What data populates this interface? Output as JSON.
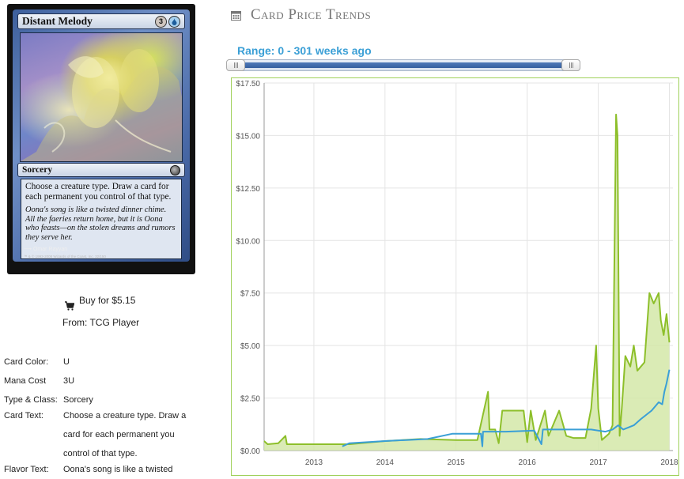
{
  "card": {
    "name": "Distant Melody",
    "mana_cost": [
      "3",
      "U"
    ],
    "type_line": "Sorcery",
    "rules_text": "Choose a creature type. Draw a card for each permanent you control of that type.",
    "flavor_text": "Oona's song is like a twisted dinner chime. All the faeries return home, but it is Oona who feasts—on the stolen dreams and rumors they serve her.",
    "artist": "Omar Rayyan",
    "legal": "™ & © 1993-2008 Wizards of the Coast, Inc. 32/150",
    "colors": {
      "frame": "#4a6aa8",
      "text_box": "#dfe6f1"
    }
  },
  "buy": {
    "label": "Buy for $5.15",
    "from": "From: TCG Player",
    "icon": "shopping-cart-icon"
  },
  "details": [
    {
      "label": "Card Color:",
      "value": "U"
    },
    {
      "label": "Mana Cost",
      "value": "3U"
    },
    {
      "label": "Type & Class:",
      "value": "Sorcery"
    },
    {
      "label": "Card Text:",
      "value": "Choose a creature type. Draw a card for each permanent you control of that type."
    },
    {
      "label": "Flavor Text:",
      "value": "Oona's song is like a twisted"
    }
  ],
  "panel": {
    "title": "Card Price Trends",
    "icon": "calendar-icon",
    "range_label": "Range: 0 - 301 weeks ago",
    "range": {
      "min_weeks_ago": 0,
      "max_weeks_ago": 301
    }
  },
  "chart_data": {
    "type": "line",
    "x_ticks": [
      "2013",
      "2014",
      "2015",
      "2016",
      "2017",
      "2018"
    ],
    "x_range": [
      2012.3,
      2018.05
    ],
    "y_ticks": [
      "$0.00",
      "$2.50",
      "$5.00",
      "$7.50",
      "$10.00",
      "$12.50",
      "$15.00",
      "$17.50"
    ],
    "ylim": [
      0,
      17.5
    ],
    "grid": true,
    "series": [
      {
        "color": "#8dbf2a",
        "fill": "#d3e8a8",
        "area": true,
        "points": [
          [
            2012.3,
            0.45
          ],
          [
            2012.35,
            0.3
          ],
          [
            2012.5,
            0.35
          ],
          [
            2012.6,
            0.7
          ],
          [
            2012.62,
            0.3
          ],
          [
            2013.5,
            0.3
          ],
          [
            2014.0,
            0.45
          ],
          [
            2014.5,
            0.55
          ],
          [
            2015.0,
            0.5
          ],
          [
            2015.3,
            0.5
          ],
          [
            2015.45,
            2.8
          ],
          [
            2015.47,
            1.0
          ],
          [
            2015.55,
            1.0
          ],
          [
            2015.6,
            0.35
          ],
          [
            2015.65,
            1.9
          ],
          [
            2015.95,
            1.9
          ],
          [
            2016.0,
            0.4
          ],
          [
            2016.05,
            1.9
          ],
          [
            2016.12,
            0.5
          ],
          [
            2016.25,
            1.9
          ],
          [
            2016.3,
            0.7
          ],
          [
            2016.45,
            1.9
          ],
          [
            2016.55,
            0.7
          ],
          [
            2016.65,
            0.6
          ],
          [
            2016.82,
            0.6
          ],
          [
            2016.9,
            2.0
          ],
          [
            2016.97,
            5.0
          ],
          [
            2017.0,
            2.0
          ],
          [
            2017.05,
            0.5
          ],
          [
            2017.15,
            0.8
          ],
          [
            2017.2,
            1.2
          ],
          [
            2017.25,
            16.0
          ],
          [
            2017.27,
            15.0
          ],
          [
            2017.3,
            0.7
          ],
          [
            2017.33,
            2.0
          ],
          [
            2017.38,
            4.5
          ],
          [
            2017.45,
            4.0
          ],
          [
            2017.5,
            5.0
          ],
          [
            2017.55,
            3.8
          ],
          [
            2017.6,
            4.0
          ],
          [
            2017.65,
            4.2
          ],
          [
            2017.72,
            7.5
          ],
          [
            2017.78,
            7.0
          ],
          [
            2017.85,
            7.5
          ],
          [
            2017.88,
            6.2
          ],
          [
            2017.92,
            5.5
          ],
          [
            2017.96,
            6.5
          ],
          [
            2018.0,
            5.15
          ]
        ]
      },
      {
        "color": "#3a9fd6",
        "area": false,
        "points": [
          [
            2013.4,
            0.2
          ],
          [
            2013.5,
            0.35
          ],
          [
            2014.0,
            0.45
          ],
          [
            2014.3,
            0.5
          ],
          [
            2014.6,
            0.55
          ],
          [
            2014.95,
            0.8
          ],
          [
            2015.35,
            0.8
          ],
          [
            2015.37,
            0.2
          ],
          [
            2015.38,
            0.9
          ],
          [
            2015.7,
            0.9
          ],
          [
            2016.1,
            0.95
          ],
          [
            2016.2,
            0.3
          ],
          [
            2016.22,
            1.0
          ],
          [
            2016.5,
            1.0
          ],
          [
            2016.9,
            1.0
          ],
          [
            2017.1,
            0.9
          ],
          [
            2017.2,
            1.0
          ],
          [
            2017.28,
            1.2
          ],
          [
            2017.35,
            1.0
          ],
          [
            2017.5,
            1.2
          ],
          [
            2017.6,
            1.5
          ],
          [
            2017.75,
            1.9
          ],
          [
            2017.85,
            2.3
          ],
          [
            2017.9,
            2.2
          ],
          [
            2017.93,
            2.8
          ],
          [
            2017.96,
            3.2
          ],
          [
            2018.0,
            3.85
          ]
        ]
      }
    ]
  }
}
